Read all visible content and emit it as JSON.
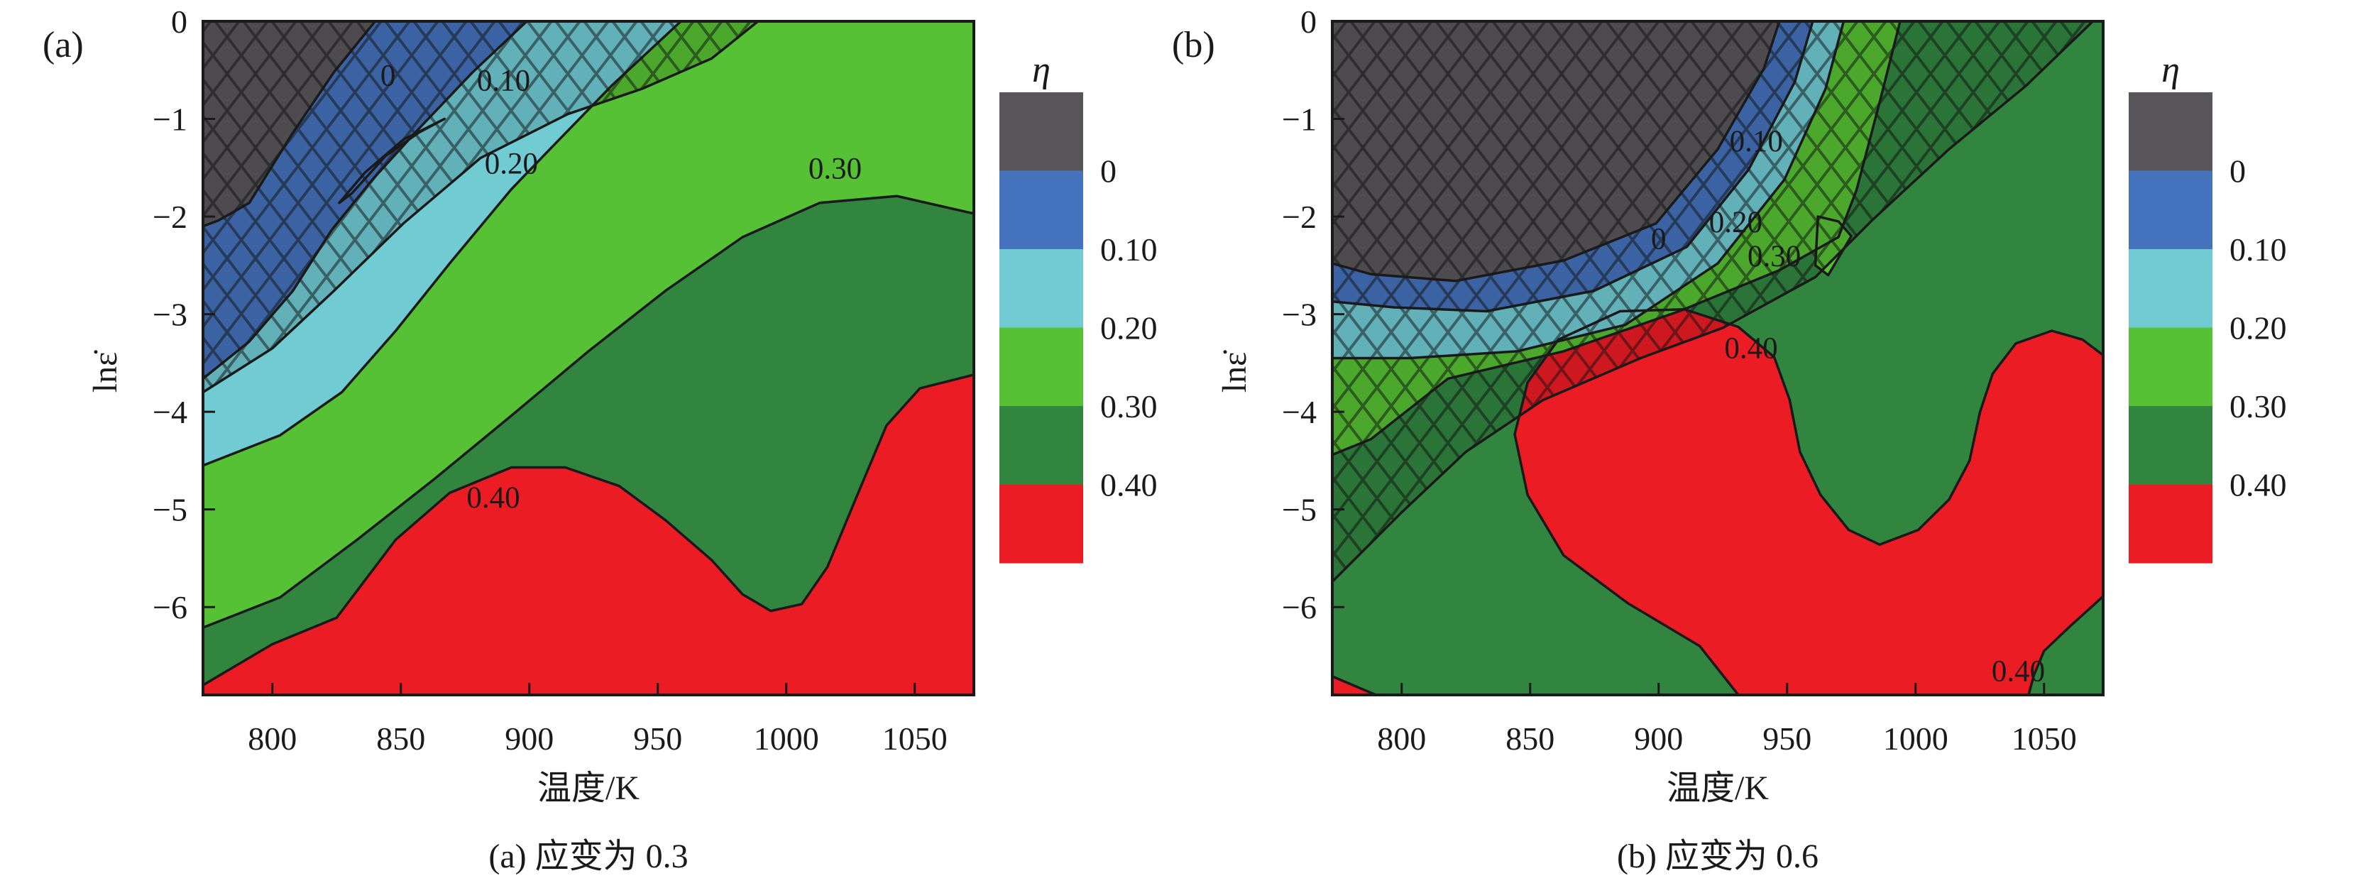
{
  "figure": {
    "background": "#ffffff",
    "colors": {
      "gray": "#58565a",
      "blue": "#4472bc",
      "brightBlue": "#3b79dd",
      "cyan": "#70cbd3",
      "lightGreen": "#56c134",
      "darkGreen": "#31853f",
      "red": "#ec1c24",
      "line": "#1a1a1a"
    }
  },
  "chart_data": [
    {
      "type": "heatmap",
      "subtype": "filled-contour-processing-map",
      "panel_label": "(a)",
      "caption": "(a) 应变为 0.3",
      "xlabel": "温度/K",
      "ylabel": "lnε̇",
      "xlim": [
        773,
        1073
      ],
      "ylim": [
        -6.9,
        0
      ],
      "x_ticks": [
        "800",
        "850",
        "900",
        "950",
        "1000",
        "1050"
      ],
      "x_tick_values": [
        800,
        850,
        900,
        950,
        1000,
        1050
      ],
      "y_ticks": [
        "0",
        "−1",
        "−2",
        "−3",
        "−4",
        "−5",
        "−6"
      ],
      "y_tick_values": [
        0,
        -1,
        -2,
        -3,
        -4,
        -5,
        -6
      ],
      "legend": {
        "title": "η",
        "boundary_labels": [
          "0",
          "0.10",
          "0.20",
          "0.30",
          "0.40"
        ],
        "band_colors": [
          "gray",
          "blue",
          "cyan",
          "lightGreen",
          "darkGreen",
          "red"
        ],
        "band_ranges": [
          "η<0",
          "0–0.10",
          "0.10–0.20",
          "0.20–0.30",
          "0.30–0.40",
          "η>0.40"
        ]
      },
      "instability_hatching": true,
      "curves": {
        "c0": {
          "points": [
            [
              840,
              0
            ],
            [
              824,
              -0.52
            ],
            [
              808,
              -1.14
            ],
            [
              791,
              -1.86
            ],
            [
              779,
              -2.04
            ],
            [
              773,
              -2.1
            ]
          ]
        },
        "c10": {
          "points": [
            [
              899,
              0
            ],
            [
              878,
              -0.52
            ],
            [
              857,
              -1.1
            ],
            [
              839,
              -1.62
            ],
            [
              823,
              -2.14
            ],
            [
              808,
              -2.76
            ],
            [
              791,
              -3.28
            ],
            [
              773,
              -3.66
            ]
          ]
        },
        "c20": {
          "points": [
            [
              959,
              0
            ],
            [
              932,
              -0.66
            ],
            [
              908,
              -1.31
            ],
            [
              893,
              -1.72
            ],
            [
              869,
              -2.48
            ],
            [
              848,
              -3.17
            ],
            [
              827,
              -3.8
            ],
            [
              803,
              -4.24
            ],
            [
              773,
              -4.55
            ]
          ]
        },
        "c30": {
          "points": [
            [
              1073,
              -1.97
            ],
            [
              1043,
              -1.79
            ],
            [
              1013,
              -1.86
            ],
            [
              983,
              -2.21
            ],
            [
              953,
              -2.76
            ],
            [
              923,
              -3.38
            ],
            [
              893,
              -4.04
            ],
            [
              863,
              -4.69
            ],
            [
              833,
              -5.31
            ],
            [
              803,
              -5.9
            ],
            [
              773,
              -6.21
            ]
          ]
        },
        "c40": {
          "points": [
            [
              1073,
              -3.62
            ],
            [
              1052,
              -3.76
            ],
            [
              1039,
              -4.14
            ],
            [
              1028,
              -4.83
            ],
            [
              1016,
              -5.59
            ],
            [
              1006,
              -5.97
            ],
            [
              994,
              -6.04
            ],
            [
              983,
              -5.87
            ],
            [
              971,
              -5.52
            ],
            [
              953,
              -5.11
            ],
            [
              935,
              -4.76
            ],
            [
              914,
              -4.57
            ],
            [
              893,
              -4.57
            ],
            [
              869,
              -4.83
            ],
            [
              848,
              -5.31
            ],
            [
              825,
              -6.11
            ],
            [
              800,
              -6.38
            ],
            [
              773,
              -6.8
            ]
          ]
        },
        "hatch": {
          "points": [
            [
              989,
              0
            ],
            [
              971,
              -0.38
            ],
            [
              944,
              -0.69
            ],
            [
              915,
              -0.95
            ],
            [
              881,
              -1.4
            ],
            [
              851,
              -2.07
            ],
            [
              824,
              -2.76
            ],
            [
              800,
              -3.35
            ],
            [
              773,
              -3.8
            ]
          ]
        },
        "wedge": {
          "points": [
            [
              867,
              -1.0
            ],
            [
              851,
              -1.21
            ],
            [
              836,
              -1.55
            ],
            [
              826,
              -1.86
            ],
            [
              831,
              -1.76
            ],
            [
              844,
              -1.38
            ],
            [
              857,
              -1.14
            ]
          ],
          "closed": true
        }
      },
      "regions": [
        {
          "fill": "red",
          "type": "full"
        },
        {
          "fill": "darkGreen",
          "curve": "c40",
          "close": "top"
        },
        {
          "fill": "lightGreen",
          "curve": "c30",
          "close": "top"
        },
        {
          "fill": "cyan",
          "curve": "c20",
          "close": "top"
        },
        {
          "fill": "blue",
          "curve": "c10",
          "close": "top"
        },
        {
          "fill": "gray",
          "curve": "c0",
          "close": "top"
        },
        {
          "fill": "brightBlue",
          "curve": "wedge",
          "close": "self"
        }
      ],
      "hatch_region": {
        "curve": "hatch",
        "close": "top"
      },
      "stroked": [
        "c0",
        "c10",
        "c20",
        "c30",
        "c40",
        "hatch",
        "wedge"
      ],
      "contour_labels": [
        {
          "text": "0",
          "T": 845,
          "v": -0.55
        },
        {
          "text": "0.10",
          "T": 890,
          "v": -0.6
        },
        {
          "text": "0.20",
          "T": 893,
          "v": -1.45
        },
        {
          "text": "0.30",
          "T": 1019,
          "v": -1.5
        },
        {
          "text": "0.40",
          "T": 886,
          "v": -4.87
        }
      ]
    },
    {
      "type": "heatmap",
      "subtype": "filled-contour-processing-map",
      "panel_label": "(b)",
      "caption": "(b) 应变为 0.6",
      "xlabel": "温度/K",
      "ylabel": "lnε̇",
      "xlim": [
        773,
        1073
      ],
      "ylim": [
        -6.9,
        0
      ],
      "x_ticks": [
        "800",
        "850",
        "900",
        "950",
        "1000",
        "1050"
      ],
      "x_tick_values": [
        800,
        850,
        900,
        950,
        1000,
        1050
      ],
      "y_ticks": [
        "0",
        "−1",
        "−2",
        "−3",
        "−4",
        "−5",
        "−6"
      ],
      "y_tick_values": [
        0,
        -1,
        -2,
        -3,
        -4,
        -5,
        -6
      ],
      "legend": {
        "title": "η",
        "boundary_labels": [
          "0",
          "0.10",
          "0.20",
          "0.30",
          "0.40"
        ],
        "band_colors": [
          "gray",
          "blue",
          "cyan",
          "lightGreen",
          "darkGreen",
          "red"
        ],
        "band_ranges": [
          "η<0",
          "0–0.10",
          "0.10–0.20",
          "0.20–0.30",
          "0.30–0.40",
          "η>0.40"
        ]
      },
      "instability_hatching": true,
      "curves": {
        "c0": {
          "points": [
            [
              947,
              0
            ],
            [
              941,
              -0.48
            ],
            [
              923,
              -1.31
            ],
            [
              899,
              -2.07
            ],
            [
              863,
              -2.45
            ],
            [
              821,
              -2.66
            ],
            [
              788,
              -2.59
            ],
            [
              773,
              -2.48
            ]
          ]
        },
        "c10": {
          "points": [
            [
              960,
              0
            ],
            [
              953,
              -0.62
            ],
            [
              935,
              -1.52
            ],
            [
              911,
              -2.31
            ],
            [
              875,
              -2.76
            ],
            [
              833,
              -2.97
            ],
            [
              797,
              -2.93
            ],
            [
              773,
              -2.87
            ]
          ]
        },
        "c20": {
          "points": [
            [
              972,
              0
            ],
            [
              965,
              -0.69
            ],
            [
              949,
              -1.62
            ],
            [
              923,
              -2.48
            ],
            [
              887,
              -3.11
            ],
            [
              845,
              -3.38
            ],
            [
              803,
              -3.45
            ],
            [
              773,
              -3.45
            ]
          ]
        },
        "c30": {
          "points": [
            [
              994,
              0
            ],
            [
              986,
              -0.83
            ],
            [
              977,
              -1.73
            ],
            [
              970,
              -2.21
            ],
            [
              947,
              -2.55
            ],
            [
              908,
              -2.97
            ],
            [
              863,
              -3.38
            ],
            [
              818,
              -3.66
            ],
            [
              788,
              -4.28
            ],
            [
              773,
              -4.44
            ]
          ]
        },
        "hatch": {
          "points": [
            [
              1069,
              0
            ],
            [
              1043,
              -0.66
            ],
            [
              1013,
              -1.31
            ],
            [
              983,
              -2.04
            ],
            [
              961,
              -2.62
            ],
            [
              925,
              -3.14
            ],
            [
              893,
              -3.45
            ],
            [
              855,
              -3.88
            ],
            [
              825,
              -4.41
            ],
            [
              800,
              -5.03
            ],
            [
              773,
              -5.74
            ]
          ]
        },
        "red": {
          "points": [
            [
              931,
              -6.9
            ],
            [
              916,
              -6.4
            ],
            [
              888,
              -5.96
            ],
            [
              863,
              -5.47
            ],
            [
              849,
              -4.85
            ],
            [
              844,
              -4.23
            ],
            [
              849,
              -3.7
            ],
            [
              861,
              -3.26
            ],
            [
              885,
              -2.97
            ],
            [
              910,
              -2.95
            ],
            [
              931,
              -3.13
            ],
            [
              945,
              -3.44
            ],
            [
              951,
              -3.88
            ],
            [
              955,
              -4.41
            ],
            [
              963,
              -4.85
            ],
            [
              974,
              -5.21
            ],
            [
              986,
              -5.36
            ],
            [
              1001,
              -5.21
            ],
            [
              1013,
              -4.9
            ],
            [
              1021,
              -4.5
            ],
            [
              1025,
              -4.01
            ],
            [
              1030,
              -3.61
            ],
            [
              1039,
              -3.3
            ],
            [
              1053,
              -3.17
            ],
            [
              1065,
              -3.26
            ],
            [
              1073,
              -3.42
            ],
            [
              1073,
              -5.89
            ],
            [
              1060,
              -6.2
            ],
            [
              1050,
              -6.45
            ],
            [
              1046,
              -6.7
            ],
            [
              1044,
              -6.9
            ]
          ],
          "closed": true
        },
        "redStroke1": {
          "points": [
            [
              931,
              -6.9
            ],
            [
              916,
              -6.4
            ],
            [
              888,
              -5.96
            ],
            [
              863,
              -5.47
            ],
            [
              849,
              -4.85
            ],
            [
              844,
              -4.23
            ],
            [
              849,
              -3.7
            ],
            [
              861,
              -3.26
            ],
            [
              885,
              -2.97
            ],
            [
              910,
              -2.95
            ],
            [
              931,
              -3.13
            ],
            [
              945,
              -3.44
            ],
            [
              951,
              -3.88
            ],
            [
              955,
              -4.41
            ],
            [
              963,
              -4.85
            ],
            [
              974,
              -5.21
            ],
            [
              986,
              -5.36
            ],
            [
              1001,
              -5.21
            ],
            [
              1013,
              -4.9
            ],
            [
              1021,
              -4.5
            ],
            [
              1025,
              -4.01
            ],
            [
              1030,
              -3.61
            ],
            [
              1039,
              -3.3
            ],
            [
              1053,
              -3.17
            ],
            [
              1065,
              -3.26
            ],
            [
              1073,
              -3.42
            ]
          ]
        },
        "redStroke2": {
          "points": [
            [
              1073,
              -5.89
            ],
            [
              1060,
              -6.2
            ],
            [
              1050,
              -6.45
            ],
            [
              1046,
              -6.7
            ],
            [
              1044,
              -6.9
            ]
          ]
        },
        "sliver": {
          "points": [
            [
              773,
              -6.71
            ],
            [
              790,
              -6.9
            ],
            [
              773,
              -6.9
            ]
          ],
          "closed": true
        },
        "sliverStroke": {
          "points": [
            [
              773,
              -6.71
            ],
            [
              790,
              -6.9
            ]
          ]
        },
        "greenSliver": {
          "points": [
            [
              962,
              -2.0
            ],
            [
              970,
              -2.05
            ],
            [
              975,
              -2.2
            ],
            [
              966,
              -2.6
            ],
            [
              961,
              -2.5
            ]
          ],
          "closed": true
        }
      },
      "regions": [
        {
          "fill": "darkGreen",
          "type": "full"
        },
        {
          "fill": "red",
          "curve": "red",
          "close": "self"
        },
        {
          "fill": "red",
          "curve": "sliver",
          "close": "self"
        },
        {
          "fill": "lightGreen",
          "curve": "c30",
          "close": "top"
        },
        {
          "fill": "cyan",
          "curve": "c20",
          "close": "top"
        },
        {
          "fill": "blue",
          "curve": "c10",
          "close": "top"
        },
        {
          "fill": "gray",
          "curve": "c0",
          "close": "top"
        },
        {
          "fill": "lightGreen",
          "curve": "greenSliver",
          "close": "self"
        }
      ],
      "hatch_region": {
        "curve": "hatch",
        "close": "top"
      },
      "stroked": [
        "c0",
        "c10",
        "c20",
        "c30",
        "hatch",
        "redStroke1",
        "redStroke2",
        "sliverStroke",
        "greenSliver"
      ],
      "contour_labels": [
        {
          "text": "0",
          "T": 900,
          "v": -2.22
        },
        {
          "text": "0.10",
          "T": 938,
          "v": -1.22
        },
        {
          "text": "0.20",
          "T": 930,
          "v": -2.05
        },
        {
          "text": "0.30",
          "T": 945,
          "v": -2.4
        },
        {
          "text": "0.40",
          "T": 936,
          "v": -3.34
        },
        {
          "text": "0.40",
          "T": 1040,
          "v": -6.65
        }
      ]
    }
  ]
}
